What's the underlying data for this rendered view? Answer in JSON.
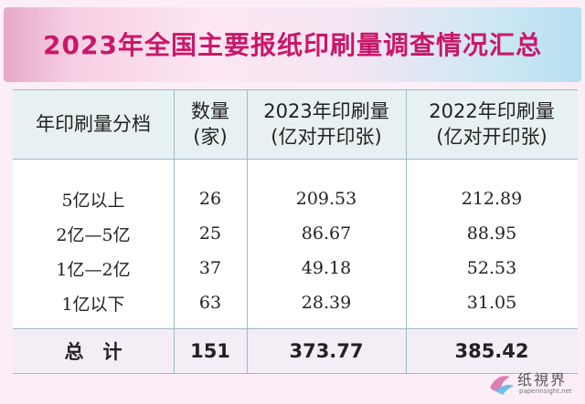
{
  "title": "2023年全国主要报纸印刷量调查情况汇总",
  "table": {
    "headers": [
      {
        "line1": "年印刷量分档",
        "line2": ""
      },
      {
        "line1": "数量",
        "line2": "(家)"
      },
      {
        "line1": "2023年印刷量",
        "line2": "(亿对开印张)"
      },
      {
        "line1": "2022年印刷量",
        "line2": "(亿对开印张)"
      }
    ],
    "rows": [
      [
        "5亿以上",
        "26",
        "209.53",
        "212.89"
      ],
      [
        "2亿—5亿",
        "25",
        "86.67",
        "88.95"
      ],
      [
        "1亿—2亿",
        "37",
        "49.18",
        "52.53"
      ],
      [
        "1亿以下",
        "63",
        "28.39",
        "31.05"
      ]
    ],
    "total": [
      "总　计",
      "151",
      "373.77",
      "385.42"
    ]
  },
  "watermark": {
    "name": "纸視界",
    "url": "paperinsight.net"
  }
}
